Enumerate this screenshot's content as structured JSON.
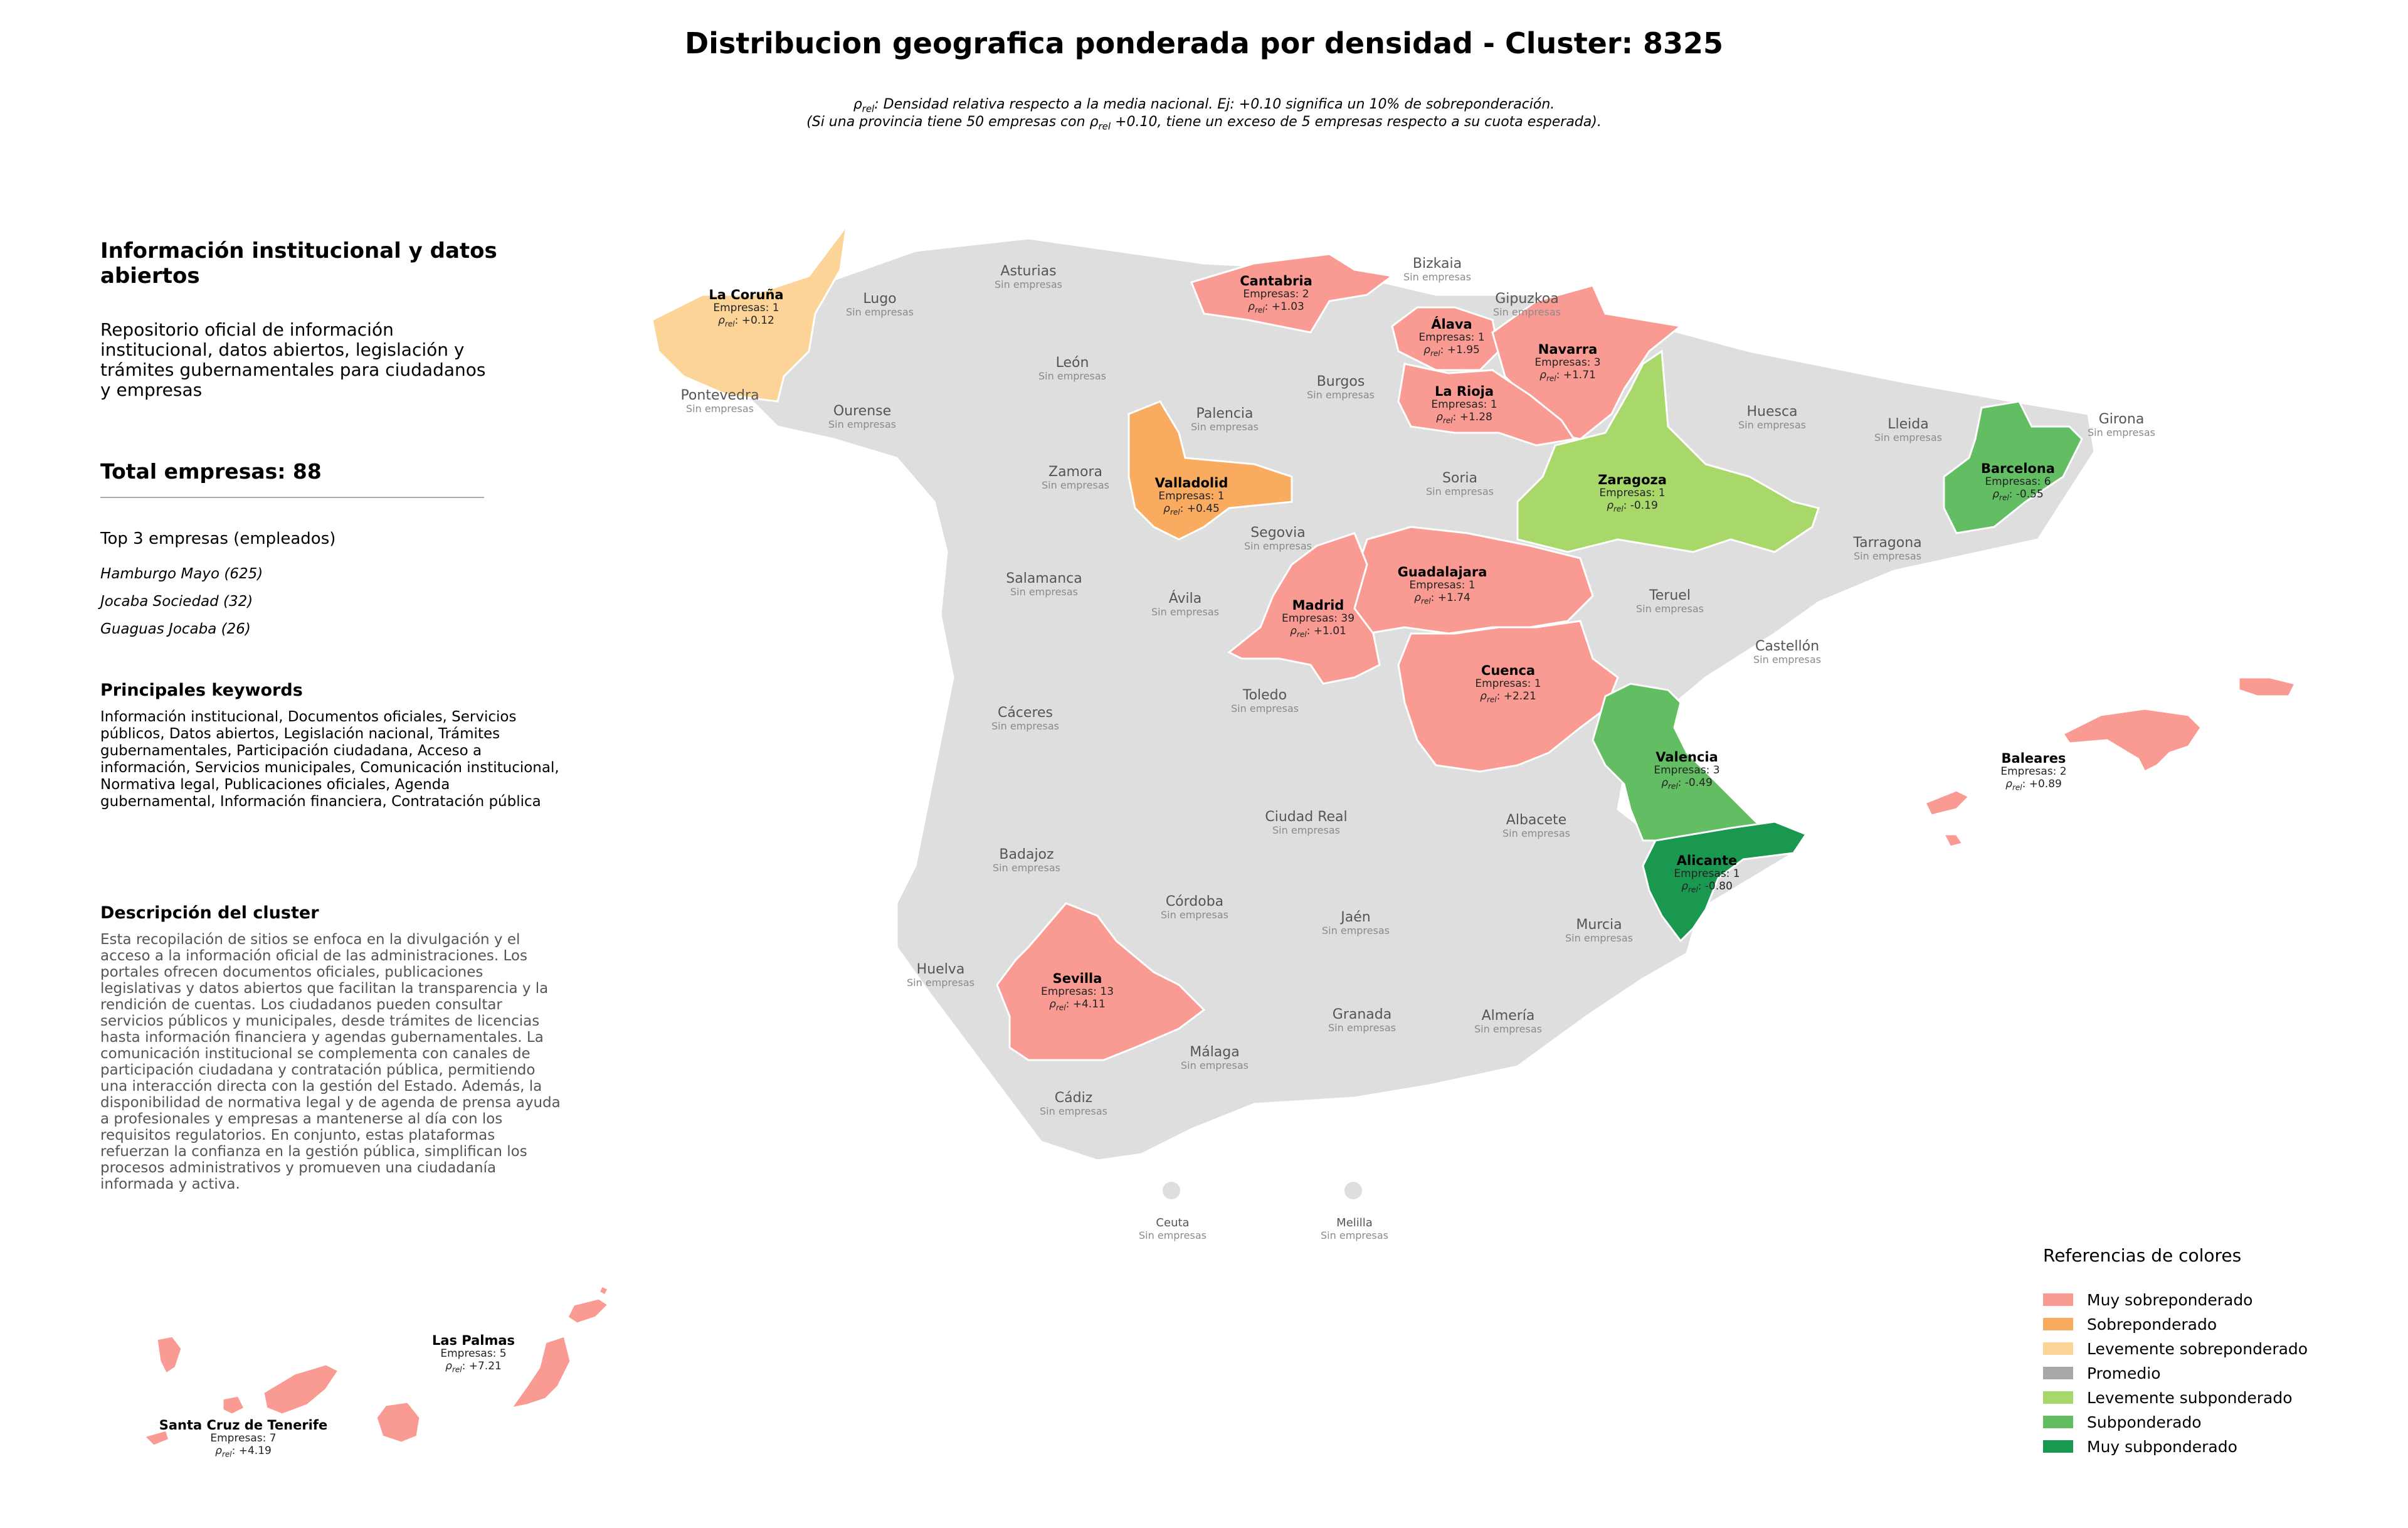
{
  "title": "Distribucion geografica ponderada por densidad - Cluster: 8325",
  "notes": [
    "ρrel: Densidad relativa respecto a la media nacional. Ej: +0.10 significa un 10% de sobreponderación.",
    "(Si una provincia tiene 50 empresas con ρrel +0.10, tiene un exceso de 5 empresas respecto a su cuota esperada)."
  ],
  "sidebar": {
    "title": "Información institucional y datos abiertos",
    "description": "Repositorio oficial de información institucional, datos abiertos, legislación y trámites gubernamentales para ciudadanos y empresas",
    "total": "Total empresas: 88",
    "top3_title": "Top 3 empresas (empleados)",
    "top3": [
      "Hamburgo Mayo (625)",
      "Jocaba Sociedad (32)",
      "Guaguas Jocaba (26)"
    ],
    "keywords_title": "Principales keywords",
    "keywords": "Información institucional, Documentos oficiales, Servicios públicos, Datos abiertos, Legislación nacional, Trámites gubernamentales, Participación ciudadana, Acceso a información, Servicios municipales, Comunicación institucional, Normativa legal, Publicaciones oficiales, Agenda gubernamental, Información financiera, Contratación pública",
    "cluster_desc_title": "Descripción del cluster",
    "cluster_desc": "Esta recopilación de sitios se enfoca en la divulgación y el acceso a la información oficial de las administraciones. Los portales ofrecen documentos oficiales, publicaciones legislativas y datos abiertos que facilitan la transparencia y la rendición de cuentas. Los ciudadanos pueden consultar servicios públicos y municipales, desde trámites de licencias hasta información financiera y agendas gubernamentales. La comunicación institucional se complementa con canales de participación ciudadana y contratación pública, permitiendo una interacción directa con la gestión del Estado. Además, la disponibilidad de normativa legal y de agenda de prensa ayuda a profesionales y empresas a mantenerse al día con los requisitos regulatorios. En conjunto, estas plataformas refuerzan la confianza en la gestión pública, simplifican los procesos administrativos y promueven una ciudadanía informada y activa."
  },
  "colors": {
    "muy_sobre": "#f99b93",
    "sobre": "#f9ab60",
    "lev_sobre": "#fdd497",
    "promedio": "#a8a8a8",
    "lev_sub": "#a8d86a",
    "sub": "#63bd63",
    "muy_sub": "#1a9850",
    "none": "#dedede"
  },
  "no_companies": "Sin empresas",
  "provinces_highlighted": [
    {
      "name": "La Coruña",
      "empresas": "Empresas: 1",
      "rho": "ρrel: +0.12",
      "cat": "lev_sobre"
    },
    {
      "name": "Cantabria",
      "empresas": "Empresas: 2",
      "rho": "ρrel: +1.03",
      "cat": "muy_sobre"
    },
    {
      "name": "Álava",
      "empresas": "Empresas: 1",
      "rho": "ρrel: +1.95",
      "cat": "muy_sobre"
    },
    {
      "name": "Navarra",
      "empresas": "Empresas: 3",
      "rho": "ρrel: +1.71",
      "cat": "muy_sobre"
    },
    {
      "name": "La Rioja",
      "empresas": "Empresas: 1",
      "rho": "ρrel: +1.28",
      "cat": "muy_sobre"
    },
    {
      "name": "Valladolid",
      "empresas": "Empresas: 1",
      "rho": "ρrel: +0.45",
      "cat": "sobre"
    },
    {
      "name": "Zaragoza",
      "empresas": "Empresas: 1",
      "rho": "ρrel: -0.19",
      "cat": "lev_sub"
    },
    {
      "name": "Barcelona",
      "empresas": "Empresas: 6",
      "rho": "ρrel: -0.55",
      "cat": "sub"
    },
    {
      "name": "Guadalajara",
      "empresas": "Empresas: 1",
      "rho": "ρrel: +1.74",
      "cat": "muy_sobre"
    },
    {
      "name": "Madrid",
      "empresas": "Empresas: 39",
      "rho": "ρrel: +1.01",
      "cat": "muy_sobre"
    },
    {
      "name": "Cuenca",
      "empresas": "Empresas: 1",
      "rho": "ρrel: +2.21",
      "cat": "muy_sobre"
    },
    {
      "name": "Valencia",
      "empresas": "Empresas: 3",
      "rho": "ρrel: -0.49",
      "cat": "sub"
    },
    {
      "name": "Baleares",
      "empresas": "Empresas: 2",
      "rho": "ρrel: +0.89",
      "cat": "muy_sobre"
    },
    {
      "name": "Alicante",
      "empresas": "Empresas: 1",
      "rho": "ρrel: -0.80",
      "cat": "muy_sub"
    },
    {
      "name": "Sevilla",
      "empresas": "Empresas: 13",
      "rho": "ρrel: +4.11",
      "cat": "muy_sobre"
    },
    {
      "name": "Las Palmas",
      "empresas": "Empresas: 5",
      "rho": "ρrel: +7.21",
      "cat": "muy_sobre"
    },
    {
      "name": "Santa Cruz de Tenerife",
      "empresas": "Empresas: 7",
      "rho": "ρrel: +4.19",
      "cat": "muy_sobre"
    }
  ],
  "provinces_empty": [
    "Lugo",
    "Asturias",
    "Bizkaia",
    "Gipuzkoa",
    "León",
    "Pontevedra",
    "Ourense",
    "Burgos",
    "Palencia",
    "Huesca",
    "Lleida",
    "Girona",
    "Zamora",
    "Soria",
    "Segovia",
    "Tarragona",
    "Salamanca",
    "Ávila",
    "Teruel",
    "Castellón",
    "Cáceres",
    "Toledo",
    "Ciudad Real",
    "Albacete",
    "Badajoz",
    "Córdoba",
    "Jaén",
    "Murcia",
    "Huelva",
    "Granada",
    "Almería",
    "Málaga",
    "Cádiz",
    "Ceuta",
    "Melilla"
  ],
  "legend": {
    "title": "Referencias de colores",
    "items": [
      {
        "label": "Muy sobreponderado",
        "color": "#f99b93"
      },
      {
        "label": "Sobreponderado",
        "color": "#f9ab60"
      },
      {
        "label": "Levemente sobreponderado",
        "color": "#fdd497"
      },
      {
        "label": "Promedio",
        "color": "#a8a8a8"
      },
      {
        "label": "Levemente subponderado",
        "color": "#a8d86a"
      },
      {
        "label": "Subponderado",
        "color": "#63bd63"
      },
      {
        "label": "Muy subponderado",
        "color": "#1a9850"
      }
    ]
  }
}
